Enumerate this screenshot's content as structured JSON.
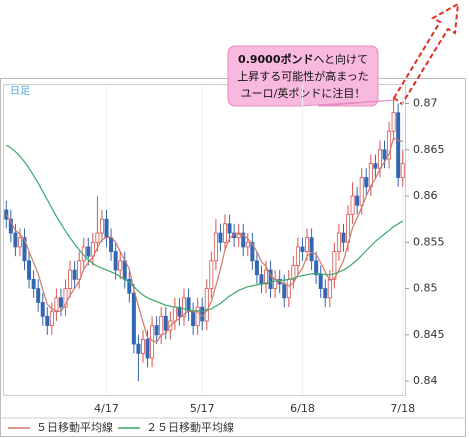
{
  "chart_data": {
    "type": "candlestick",
    "label": "日足",
    "annotation": {
      "emphasis": "0.9000ポンド",
      "lines": [
        "へと向けて",
        "上昇する可能性が高まった",
        "ユーロ/英ポンドに注目！"
      ]
    },
    "up_color": "#d9534f",
    "down_color": "#3366b3",
    "categories": [
      null,
      null,
      null,
      null,
      null,
      null,
      null,
      null,
      null,
      null,
      null,
      null,
      null,
      null,
      null,
      null,
      null,
      null,
      null,
      null,
      null,
      null,
      "4/17",
      null,
      null,
      null,
      null,
      null,
      null,
      null,
      null,
      null,
      null,
      null,
      null,
      null,
      null,
      null,
      null,
      null,
      null,
      null,
      null,
      "5/17",
      null,
      null,
      null,
      null,
      null,
      null,
      null,
      null,
      null,
      null,
      null,
      null,
      null,
      null,
      null,
      null,
      null,
      null,
      null,
      null,
      null,
      "6/18",
      null,
      null,
      null,
      null,
      null,
      null,
      null,
      null,
      null,
      null,
      null,
      null,
      null,
      null,
      null,
      null,
      null,
      null,
      null,
      null,
      null,
      "7/18"
    ],
    "open": [
      0.8585,
      0.8575,
      0.856,
      0.8545,
      0.8555,
      0.853,
      0.851,
      0.85,
      0.8485,
      0.847,
      0.846,
      0.8475,
      0.849,
      0.848,
      0.85,
      0.852,
      0.851,
      0.853,
      0.8545,
      0.8535,
      0.855,
      0.856,
      0.8575,
      0.8555,
      0.854,
      0.852,
      0.853,
      0.851,
      0.8495,
      0.844,
      0.843,
      0.8445,
      0.8425,
      0.846,
      0.845,
      0.847,
      0.8455,
      0.8465,
      0.848,
      0.847,
      0.849,
      0.8475,
      0.846,
      0.848,
      0.8465,
      0.85,
      0.853,
      0.856,
      0.855,
      0.857,
      0.856,
      0.8555,
      0.856,
      0.8545,
      0.855,
      0.853,
      0.8515,
      0.8505,
      0.852,
      0.85,
      0.851,
      0.8505,
      0.849,
      0.851,
      0.8525,
      0.8545,
      0.854,
      0.8555,
      0.853,
      0.8515,
      0.85,
      0.849,
      0.851,
      0.854,
      0.856,
      0.855,
      0.858,
      0.86,
      0.859,
      0.862,
      0.861,
      0.8635,
      0.863,
      0.865,
      0.864,
      0.867,
      0.869,
      0.862
    ],
    "high": [
      0.8595,
      0.8585,
      0.857,
      0.8565,
      0.8565,
      0.854,
      0.852,
      0.851,
      0.8495,
      0.848,
      0.8485,
      0.85,
      0.85,
      0.851,
      0.853,
      0.853,
      0.854,
      0.8555,
      0.8555,
      0.856,
      0.86,
      0.8585,
      0.8585,
      0.8565,
      0.855,
      0.854,
      0.854,
      0.852,
      0.8505,
      0.845,
      0.8455,
      0.8455,
      0.847,
      0.847,
      0.848,
      0.848,
      0.8475,
      0.849,
      0.849,
      0.85,
      0.85,
      0.8485,
      0.849,
      0.849,
      0.851,
      0.854,
      0.8575,
      0.857,
      0.858,
      0.858,
      0.857,
      0.857,
      0.857,
      0.856,
      0.856,
      0.854,
      0.8525,
      0.853,
      0.853,
      0.852,
      0.852,
      0.8515,
      0.852,
      0.8535,
      0.8555,
      0.8555,
      0.8565,
      0.8565,
      0.854,
      0.8525,
      0.851,
      0.852,
      0.855,
      0.857,
      0.857,
      0.859,
      0.8615,
      0.861,
      0.863,
      0.863,
      0.8645,
      0.8645,
      0.866,
      0.866,
      0.868,
      0.8705,
      0.87,
      0.865
    ],
    "low": [
      0.8565,
      0.855,
      0.8535,
      0.8535,
      0.852,
      0.85,
      0.849,
      0.8475,
      0.846,
      0.845,
      0.845,
      0.8465,
      0.847,
      0.847,
      0.849,
      0.85,
      0.85,
      0.852,
      0.8525,
      0.8525,
      0.854,
      0.855,
      0.8545,
      0.853,
      0.851,
      0.851,
      0.85,
      0.8485,
      0.843,
      0.84,
      0.842,
      0.8415,
      0.8415,
      0.844,
      0.844,
      0.8445,
      0.8445,
      0.8455,
      0.846,
      0.846,
      0.8465,
      0.845,
      0.845,
      0.8455,
      0.8455,
      0.849,
      0.852,
      0.854,
      0.854,
      0.855,
      0.8545,
      0.8545,
      0.8535,
      0.8535,
      0.852,
      0.8505,
      0.8495,
      0.8495,
      0.849,
      0.849,
      0.8495,
      0.848,
      0.848,
      0.85,
      0.8515,
      0.853,
      0.853,
      0.852,
      0.8505,
      0.849,
      0.848,
      0.848,
      0.85,
      0.853,
      0.854,
      0.854,
      0.857,
      0.858,
      0.858,
      0.86,
      0.86,
      0.862,
      0.862,
      0.863,
      0.863,
      0.866,
      0.861,
      0.861
    ],
    "close": [
      0.8575,
      0.856,
      0.8545,
      0.8555,
      0.853,
      0.851,
      0.85,
      0.8485,
      0.847,
      0.846,
      0.8475,
      0.849,
      0.848,
      0.85,
      0.852,
      0.851,
      0.853,
      0.8545,
      0.8535,
      0.855,
      0.856,
      0.8575,
      0.8555,
      0.854,
      0.852,
      0.853,
      0.851,
      0.8495,
      0.844,
      0.843,
      0.8445,
      0.8425,
      0.846,
      0.845,
      0.847,
      0.8455,
      0.8465,
      0.848,
      0.847,
      0.849,
      0.8475,
      0.846,
      0.848,
      0.8465,
      0.85,
      0.853,
      0.856,
      0.855,
      0.857,
      0.856,
      0.8555,
      0.856,
      0.8545,
      0.855,
      0.853,
      0.8515,
      0.8505,
      0.852,
      0.85,
      0.851,
      0.8505,
      0.849,
      0.851,
      0.8525,
      0.8545,
      0.854,
      0.8555,
      0.853,
      0.8515,
      0.85,
      0.849,
      0.851,
      0.854,
      0.856,
      0.855,
      0.858,
      0.86,
      0.859,
      0.862,
      0.861,
      0.8635,
      0.863,
      0.865,
      0.864,
      0.867,
      0.869,
      0.862,
      0.8635
    ],
    "series": [
      {
        "name": "５日移動平均線",
        "color": "#d0786c",
        "values": [
          0.858,
          0.8572,
          0.8563,
          0.8559,
          0.8553,
          0.854,
          0.8528,
          0.8516,
          0.8499,
          0.8483,
          0.8478,
          0.8476,
          0.8475,
          0.8483,
          0.8493,
          0.85,
          0.8508,
          0.8521,
          0.8528,
          0.8534,
          0.8544,
          0.8553,
          0.8555,
          0.8556,
          0.855,
          0.854,
          0.8531,
          0.8521,
          0.8499,
          0.8481,
          0.8464,
          0.8447,
          0.8444,
          0.8442,
          0.845,
          0.8452,
          0.846,
          0.8464,
          0.8468,
          0.8472,
          0.8476,
          0.8475,
          0.8475,
          0.847,
          0.8476,
          0.8486,
          0.8503,
          0.8521,
          0.8542,
          0.8554,
          0.8559,
          0.8559,
          0.8558,
          0.8554,
          0.8548,
          0.854,
          0.8529,
          0.8524,
          0.8514,
          0.851,
          0.8508,
          0.8505,
          0.8503,
          0.8506,
          0.8515,
          0.8522,
          0.8535,
          0.8539,
          0.8537,
          0.8528,
          0.8518,
          0.8509,
          0.8511,
          0.852,
          0.853,
          0.8548,
          0.8566,
          0.8576,
          0.8588,
          0.86,
          0.8611,
          0.8619,
          0.8629,
          0.8637,
          0.8645,
          0.8663,
          0.866,
          0.8659
        ]
      },
      {
        "name": "２５日移動平均線",
        "color": "#3aa86a",
        "values": [
          0.8655,
          0.8652,
          0.8648,
          0.8643,
          0.8637,
          0.863,
          0.8622,
          0.8614,
          0.8605,
          0.8596,
          0.8587,
          0.8578,
          0.857,
          0.8562,
          0.8555,
          0.8548,
          0.8542,
          0.8536,
          0.8531,
          0.8527,
          0.8524,
          0.8522,
          0.852,
          0.8518,
          0.8516,
          0.8513,
          0.851,
          0.8507,
          0.8502,
          0.8497,
          0.8493,
          0.849,
          0.8488,
          0.8486,
          0.8484,
          0.8482,
          0.8481,
          0.848,
          0.8479,
          0.8478,
          0.8477,
          0.8476,
          0.8476,
          0.8476,
          0.8477,
          0.8478,
          0.8481,
          0.8484,
          0.8488,
          0.8492,
          0.8495,
          0.8498,
          0.85,
          0.8502,
          0.8503,
          0.8504,
          0.8505,
          0.8506,
          0.8507,
          0.8508,
          0.8509,
          0.8509,
          0.851,
          0.8511,
          0.8513,
          0.8514,
          0.8515,
          0.8516,
          0.8516,
          0.8516,
          0.8515,
          0.8515,
          0.8516,
          0.8518,
          0.852,
          0.8523,
          0.8527,
          0.8531,
          0.8536,
          0.8541,
          0.8546,
          0.8551,
          0.8555,
          0.8559,
          0.8563,
          0.8567,
          0.857,
          0.8573
        ]
      }
    ],
    "ylim": [
      0.8385,
      0.872
    ],
    "yticks": [
      0.84,
      0.845,
      0.85,
      0.855,
      0.86,
      0.865,
      0.87
    ]
  }
}
